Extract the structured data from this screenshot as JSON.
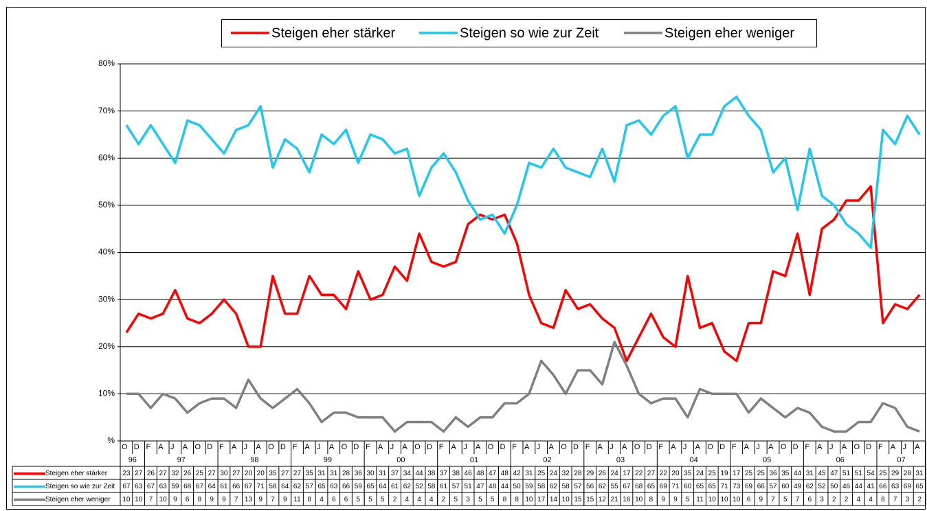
{
  "chart_data": {
    "type": "line",
    "category_groups": [
      {
        "label": "96",
        "categories": [
          "O",
          "D"
        ]
      },
      {
        "label": "97",
        "categories": [
          "F",
          "A",
          "J",
          "A",
          "O",
          "D"
        ]
      },
      {
        "label": "98",
        "categories": [
          "F",
          "A",
          "J",
          "A",
          "O",
          "D"
        ]
      },
      {
        "label": "99",
        "categories": [
          "F",
          "A",
          "J",
          "A",
          "O",
          "D"
        ]
      },
      {
        "label": "00",
        "categories": [
          "F",
          "A",
          "J",
          "A",
          "O",
          "D"
        ]
      },
      {
        "label": "01",
        "categories": [
          "F",
          "A",
          "J",
          "A",
          "O",
          "D"
        ]
      },
      {
        "label": "02",
        "categories": [
          "F",
          "A",
          "J",
          "A",
          "O",
          "D"
        ]
      },
      {
        "label": "03",
        "categories": [
          "F",
          "A",
          "J",
          "A",
          "O",
          "D"
        ]
      },
      {
        "label": "04",
        "categories": [
          "F",
          "A",
          "J",
          "A",
          "O",
          "D"
        ]
      },
      {
        "label": "05",
        "categories": [
          "F",
          "A",
          "J",
          "A",
          "O",
          "D"
        ]
      },
      {
        "label": "06",
        "categories": [
          "F",
          "A",
          "J",
          "A",
          "O",
          "D"
        ]
      },
      {
        "label": "07",
        "categories": [
          "F",
          "A",
          "J",
          "A"
        ]
      }
    ],
    "series": [
      {
        "name": "Steigen eher stärker",
        "color": "#ff0000",
        "values": [
          23,
          27,
          26,
          27,
          32,
          26,
          25,
          27,
          30,
          27,
          20,
          20,
          35,
          27,
          27,
          35,
          31,
          31,
          28,
          36,
          30,
          31,
          37,
          34,
          44,
          38,
          37,
          38,
          46,
          48,
          47,
          48,
          42,
          31,
          25,
          24,
          32,
          28,
          29,
          26,
          24,
          17,
          22,
          27,
          22,
          20,
          35,
          24,
          25,
          19,
          17,
          25,
          25,
          36,
          35,
          44,
          31,
          45,
          47,
          51,
          51,
          54,
          25,
          29,
          28,
          31
        ]
      },
      {
        "name": "Steigen so wie zur Zeit",
        "color": "#1ec8f0",
        "values": [
          67,
          63,
          67,
          63,
          59,
          68,
          67,
          64,
          61,
          66,
          67,
          71,
          58,
          64,
          62,
          57,
          65,
          63,
          66,
          59,
          65,
          64,
          61,
          62,
          52,
          58,
          61,
          57,
          51,
          47,
          48,
          44,
          50,
          59,
          58,
          62,
          58,
          57,
          56,
          62,
          55,
          67,
          68,
          65,
          69,
          71,
          60,
          65,
          65,
          71,
          73,
          69,
          66,
          57,
          60,
          49,
          62,
          52,
          50,
          46,
          44,
          41,
          66,
          63,
          69,
          65
        ]
      },
      {
        "name": "Steigen eher weniger",
        "color": "#808080",
        "values": [
          10,
          10,
          7,
          10,
          9,
          6,
          8,
          9,
          9,
          7,
          13,
          9,
          7,
          9,
          11,
          8,
          4,
          6,
          6,
          5,
          5,
          5,
          2,
          4,
          4,
          4,
          2,
          5,
          3,
          5,
          5,
          8,
          8,
          10,
          17,
          14,
          10,
          15,
          15,
          12,
          21,
          16,
          10,
          8,
          9,
          9,
          5,
          11,
          10,
          10,
          10,
          6,
          9,
          7,
          5,
          7,
          6,
          3,
          2,
          2,
          4,
          4,
          8,
          7,
          3,
          2
        ]
      }
    ],
    "ylim": [
      0,
      80
    ],
    "yticks": [
      {
        "value": 0,
        "label": "%"
      },
      {
        "value": 10,
        "label": "10%"
      },
      {
        "value": 20,
        "label": "20%"
      },
      {
        "value": 30,
        "label": "30%"
      },
      {
        "value": 40,
        "label": "40%"
      },
      {
        "value": 50,
        "label": "50%"
      },
      {
        "value": 60,
        "label": "60%"
      },
      {
        "value": 70,
        "label": "70%"
      },
      {
        "value": 80,
        "label": "80%"
      }
    ],
    "grid": true,
    "legend": "top",
    "data_table": true
  }
}
